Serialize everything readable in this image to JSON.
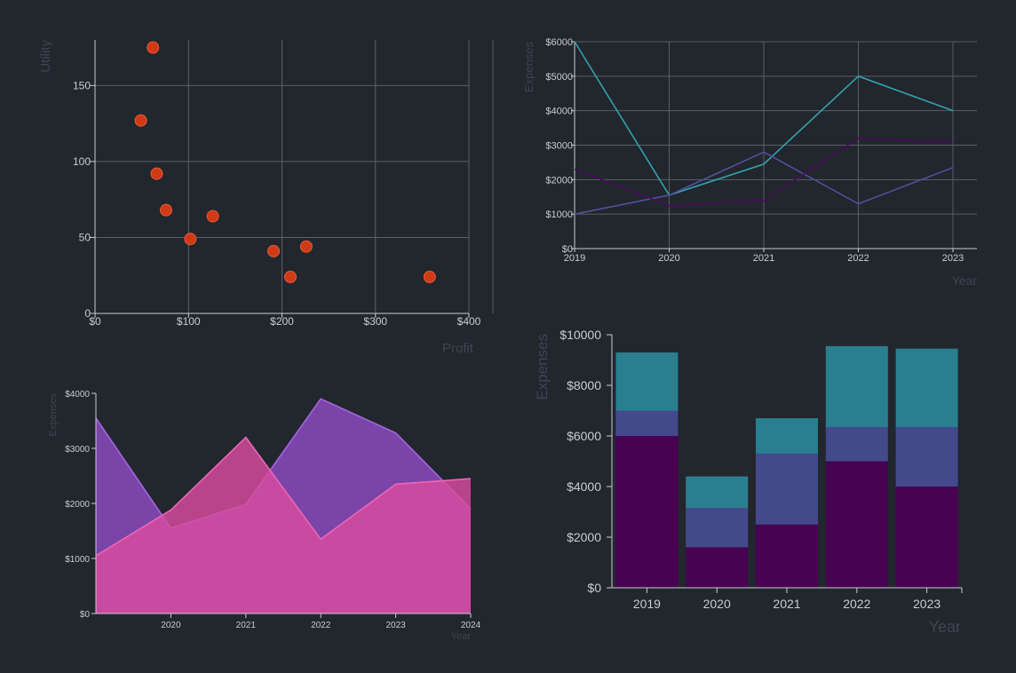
{
  "colors": {
    "background": "#22262d",
    "scatter_point": "#d13a17",
    "line_teal": "#32a2ad",
    "line_indigo": "#50509e",
    "line_purple": "#4b0a5e",
    "area_violet": "#8d4cc4",
    "area_pink": "#d94d9f",
    "bar_dark": "#470251",
    "bar_indigo": "#434a8c",
    "bar_teal": "#2a7f8f"
  },
  "chart_data": [
    {
      "id": "scatter",
      "type": "scatter",
      "xlabel": "Profit",
      "ylabel": "Utility",
      "xlim": [
        0,
        400
      ],
      "ylim": [
        0,
        180
      ],
      "x_ticks": [
        "$0",
        "$100",
        "$200",
        "$300",
        "$400"
      ],
      "y_ticks": [
        "0",
        "50",
        "100",
        "150"
      ],
      "grid": true,
      "points": [
        {
          "x": 62,
          "y": 175
        },
        {
          "x": 49,
          "y": 127
        },
        {
          "x": 66,
          "y": 92
        },
        {
          "x": 76,
          "y": 68
        },
        {
          "x": 126,
          "y": 64
        },
        {
          "x": 102,
          "y": 49
        },
        {
          "x": 191,
          "y": 41
        },
        {
          "x": 226,
          "y": 44
        },
        {
          "x": 209,
          "y": 24
        },
        {
          "x": 358,
          "y": 24
        }
      ]
    },
    {
      "id": "line",
      "type": "line",
      "xlabel": "Year",
      "ylabel": "Expenses",
      "ylim": [
        0,
        6000
      ],
      "categories": [
        "2019",
        "2020",
        "2021",
        "2022",
        "2023"
      ],
      "y_ticks": [
        "$0",
        "$1000",
        "$2000",
        "$3000",
        "$4000",
        "$5000",
        "$6000"
      ],
      "grid": true,
      "series": [
        {
          "values": [
            6000,
            1550,
            2450,
            5000,
            4000
          ]
        },
        {
          "values": [
            1000,
            1550,
            2800,
            1300,
            2350
          ]
        },
        {
          "values": [
            2300,
            1250,
            1400,
            3200,
            3100
          ]
        }
      ]
    },
    {
      "id": "area",
      "type": "area",
      "xlabel": "Year",
      "ylabel": "Expenses",
      "xlim": [
        2019,
        2024
      ],
      "ylim": [
        0,
        4000
      ],
      "x_ticks": [
        "2020",
        "2021",
        "2022",
        "2023",
        "2024"
      ],
      "y_ticks": [
        "$0",
        "$1000",
        "$2000",
        "$3000",
        "$4000"
      ],
      "grid": false,
      "x": [
        2019,
        2020,
        2021,
        2022,
        2023,
        2024
      ],
      "series": [
        {
          "values": [
            3550,
            1550,
            1980,
            3900,
            3280,
            1900
          ]
        },
        {
          "values": [
            1050,
            1880,
            3200,
            1350,
            2350,
            2450
          ]
        }
      ]
    },
    {
      "id": "stacked-bar",
      "type": "bar",
      "stacked": true,
      "xlabel": "Year",
      "ylabel": "Expenses",
      "ylim": [
        0,
        10000
      ],
      "categories": [
        "2019",
        "2020",
        "2021",
        "2022",
        "2023"
      ],
      "y_ticks": [
        "$0",
        "$2000",
        "$4000",
        "$6000",
        "$8000",
        "$10000"
      ],
      "grid": false,
      "series": [
        {
          "values": [
            6000,
            1600,
            2500,
            5000,
            4000
          ]
        },
        {
          "values": [
            1000,
            1550,
            2800,
            1350,
            2350
          ]
        },
        {
          "values": [
            2300,
            1250,
            1400,
            3200,
            3100
          ]
        }
      ]
    }
  ]
}
